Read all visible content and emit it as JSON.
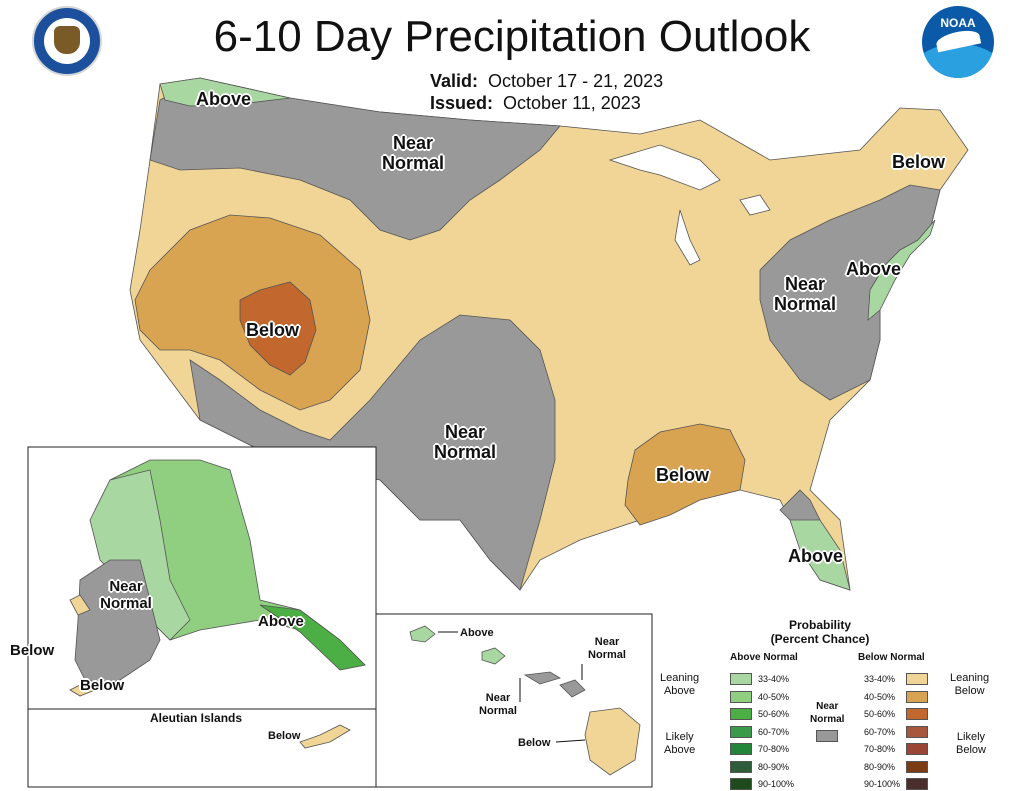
{
  "title": "6-10 Day Precipitation Outlook",
  "valid_label": "Valid:",
  "valid_value": "October 17 - 21, 2023",
  "issued_label": "Issued:",
  "issued_value": "October 11, 2023",
  "logos": {
    "left": "department-of-commerce-seal",
    "right": "noaa-logo"
  },
  "colors": {
    "above_33_40": "#a9d7a2",
    "above_40_50": "#8fcf7f",
    "above_50_60": "#4caf45",
    "above_60_70": "#3b9a4a",
    "above_70_80": "#23853a",
    "above_80_90": "#2e5d39",
    "above_90_100": "#1e4a1c",
    "near_normal": "#999999",
    "below_33_40": "#f0d596",
    "below_40_50": "#d9a452",
    "below_50_60": "#c2672d",
    "below_60_70": "#a8573d",
    "below_70_80": "#9a4535",
    "below_80_90": "#7c3b12",
    "below_90_100": "#4a2e2e"
  },
  "map_labels": {
    "nw_above": "Above",
    "north_near1": "Near",
    "north_near2": "Normal",
    "ne_below": "Below",
    "ne_above": "Above",
    "east_near1": "Near",
    "east_near2": "Normal",
    "sw_below": "Below",
    "south_near1": "Near",
    "south_near2": "Normal",
    "se_below": "Below",
    "fl_above": "Above"
  },
  "alaska": {
    "near1": "Near",
    "near2": "Normal",
    "above": "Above",
    "below_left": "Below",
    "below_bottom": "Below",
    "aleutian_title": "Aleutian Islands",
    "aleutian_below": "Below"
  },
  "hawaii": {
    "above": "Above",
    "near_a1": "Near",
    "near_a2": "Normal",
    "near_b1": "Near",
    "near_b2": "Normal",
    "below": "Below"
  },
  "legend": {
    "title1": "Probability",
    "title2": "(Percent Chance)",
    "above_head": "Above Normal",
    "below_head": "Below Normal",
    "near1": "Near",
    "near2": "Normal",
    "leaning1": "Leaning",
    "leaning_above": "Above",
    "leaning_below": "Below",
    "likely1": "Likely",
    "likely_above": "Above",
    "likely_below": "Below",
    "ranges": [
      "33-40%",
      "40-50%",
      "50-60%",
      "60-70%",
      "70-80%",
      "80-90%",
      "90-100%"
    ]
  }
}
